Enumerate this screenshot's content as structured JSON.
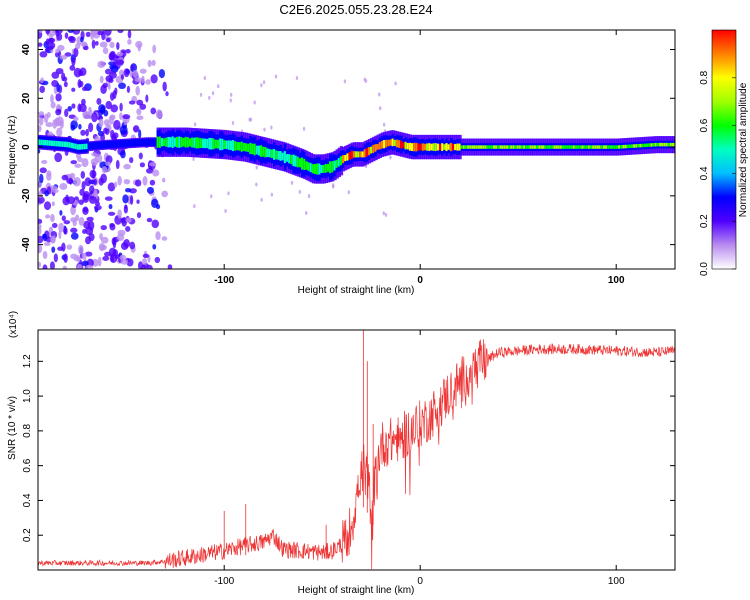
{
  "title": "C2E6.2025.055.23.28.E24",
  "chart_data": [
    {
      "type": "heatmap",
      "xlabel": "Height of straight line (km)",
      "ylabel": "Frequency (Hz)",
      "xlim": [
        -195,
        130
      ],
      "ylim": [
        -50,
        48
      ],
      "xticks": [
        -100,
        0,
        100
      ],
      "yticks": [
        -40,
        -20,
        0,
        20,
        40
      ],
      "colorbar": {
        "label": "Normalized spectral amplitude",
        "range": [
          0.0,
          1.0
        ],
        "ticks": [
          0.0,
          0.2,
          0.4,
          0.6,
          0.8
        ],
        "tick_labels": [
          "0.0",
          "0.2",
          "0.4",
          "0.6",
          "0.8"
        ],
        "colormap": "rainbow (white-purple-blue-cyan-green-yellow-red)"
      },
      "ridge": {
        "x": [
          -195,
          -180,
          -175,
          -160,
          -140,
          -120,
          -100,
          -90,
          -80,
          -70,
          -60,
          -55,
          -50,
          -45,
          -40,
          -35,
          -30,
          -25,
          -20,
          -15,
          -10,
          -5,
          0,
          10,
          20,
          40,
          60,
          80,
          100,
          120,
          130
        ],
        "y": [
          2,
          1,
          0,
          1,
          2,
          2,
          1,
          0,
          -2,
          -4,
          -7,
          -9,
          -9,
          -8,
          -5,
          -3,
          -3,
          -1,
          1,
          2,
          1,
          0,
          0,
          0,
          0,
          0,
          0,
          0,
          0,
          1,
          1
        ]
      },
      "noise_region_x": [
        -195,
        -125
      ]
    },
    {
      "type": "line",
      "xlabel": "Height of straight line (km)",
      "ylabel": "SNR (10 * v/v)",
      "y_multiplier": "(x10⁴)",
      "xlim": [
        -195,
        130
      ],
      "ylim": [
        0,
        1.38
      ],
      "xticks": [
        -100,
        0,
        100
      ],
      "yticks": [
        0.2,
        0.4,
        0.6,
        0.8,
        1.0,
        1.2
      ],
      "ytick_labels": [
        "0.2",
        "0.4",
        "0.6",
        "0.8",
        "1.0",
        "1.2"
      ],
      "series_color": "#ee3333",
      "envelope": {
        "x": [
          -195,
          -140,
          -130,
          -120,
          -100,
          -90,
          -80,
          -75,
          -70,
          -60,
          -50,
          -45,
          -40,
          -35,
          -32,
          -29,
          -27,
          -25,
          -22,
          -20,
          -15,
          -10,
          -5,
          0,
          5,
          10,
          15,
          20,
          30,
          40,
          60,
          80,
          100,
          120,
          130
        ],
        "y": [
          0.04,
          0.04,
          0.05,
          0.07,
          0.11,
          0.14,
          0.16,
          0.2,
          0.12,
          0.11,
          0.1,
          0.11,
          0.15,
          0.25,
          0.45,
          0.6,
          0.55,
          0.35,
          0.6,
          0.72,
          0.74,
          0.76,
          0.8,
          0.84,
          0.88,
          0.95,
          1.02,
          1.08,
          1.18,
          1.25,
          1.27,
          1.27,
          1.26,
          1.25,
          1.26
        ]
      },
      "spikes": [
        {
          "x": -100,
          "y": 0.34
        },
        {
          "x": -89,
          "y": 0.38
        },
        {
          "x": -48,
          "y": 0.26
        },
        {
          "x": -29,
          "y": 1.38
        },
        {
          "x": -27,
          "y": 1.2
        },
        {
          "x": -24,
          "y": 0.84
        }
      ]
    }
  ]
}
